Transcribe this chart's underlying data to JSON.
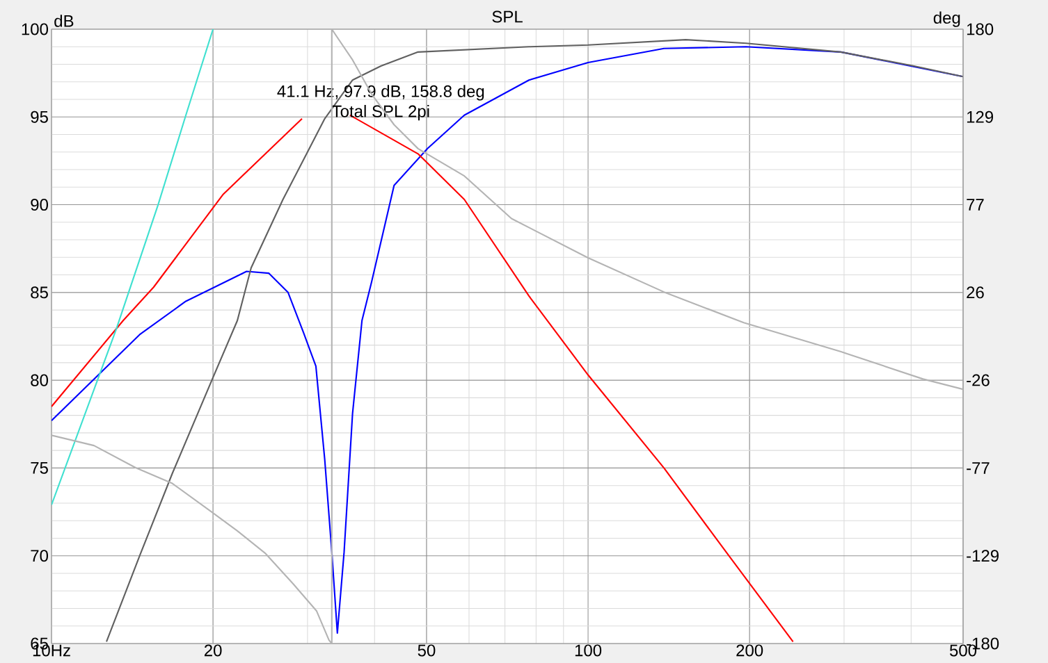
{
  "chart_data": {
    "type": "line",
    "title": "SPL",
    "ylabel": "dB",
    "y2label": "deg",
    "xlim": [
      10,
      500
    ],
    "ylim": [
      65,
      100
    ],
    "y2lim": [
      -180,
      180
    ],
    "log": "x",
    "xticks": [
      {
        "value": 10,
        "label": "10Hz"
      },
      20,
      50,
      100,
      200,
      500
    ],
    "yticks": [
      65,
      70,
      75,
      80,
      85,
      90,
      95,
      100
    ],
    "y2ticks": [
      -180,
      {
        "value": -128.57,
        "label": "-129"
      },
      {
        "value": -77.14,
        "label": "-77"
      },
      {
        "value": -25.71,
        "label": "-26"
      },
      {
        "value": 25.71,
        "label": "26"
      },
      {
        "value": 77.14,
        "label": "77"
      },
      {
        "value": 128.57,
        "label": "129"
      },
      180
    ],
    "grid": true,
    "marker": "none",
    "line_style": "solid",
    "series": [
      {
        "color": "#b4b4b4",
        "axis": "y2",
        "x": [
          10,
          12,
          14.35,
          16.76,
          19.7,
          22.2,
          25,
          28.2,
          31.2,
          32.9,
          33.3,
          33.3,
          34.3,
          36.4,
          39.5,
          43.5,
          48.2,
          58.8,
          72,
          100,
          138.5,
          195,
          296,
          421,
          500
        ],
        "values": [
          -58,
          -64,
          -77,
          -86,
          -102,
          -114,
          -127,
          -145,
          -161,
          -178,
          -180,
          180,
          174,
          162,
          142,
          124,
          110,
          94,
          69,
          46,
          26,
          8,
          -9,
          -25,
          -31
        ]
      },
      {
        "color": "#0000ff",
        "x": [
          10,
          14.6,
          17.8,
          23.1,
          25.4,
          27.6,
          29.5,
          31.1,
          32.3,
          33.3,
          34.1,
          35.1,
          36.4,
          37.9,
          39.5,
          43.5,
          50.2,
          58.8,
          77.6,
          100,
          138.5,
          197,
          296,
          500
        ],
        "values": [
          77.7,
          82.6,
          84.5,
          86.2,
          86.1,
          85,
          82.7,
          80.8,
          75.5,
          70.2,
          65.6,
          70.2,
          78.1,
          83.4,
          85.6,
          91.1,
          93.2,
          95.1,
          97.1,
          98.1,
          98.9,
          99.0,
          98.7,
          97.3
        ]
      },
      {
        "color": "#ff0000",
        "x": [
          10,
          13.6,
          15.5,
          20.9,
          29.3,
          null,
          36,
          48.2,
          58.8,
          77.6,
          100,
          138.5,
          182,
          241
        ],
        "values": [
          78.5,
          83.4,
          85.3,
          90.6,
          94.9,
          null,
          95.1,
          92.9,
          90.3,
          84.8,
          80.3,
          75,
          70.1,
          65.1
        ]
      },
      {
        "color": "#40e0d0",
        "x": [
          10,
          13.2,
          15.8,
          17.8,
          20
        ],
        "values": [
          72.9,
          82.9,
          90,
          95.1,
          100
        ]
      },
      {
        "color": "#606060",
        "x": [
          12.66,
          14.6,
          16.8,
          19.9,
          22.2,
          23.55,
          27,
          30,
          32.3,
          36.4,
          41.1,
          48.2,
          77.6,
          100,
          152,
          197,
          296,
          405,
          500
        ],
        "values": [
          65.1,
          70,
          74.7,
          80,
          83.4,
          86.4,
          90.3,
          93,
          94.9,
          97.1,
          97.9,
          98.7,
          99.0,
          99.1,
          99.4,
          99.2,
          98.7,
          97.9,
          97.3
        ]
      }
    ],
    "annotations": [
      {
        "text": "41.1 Hz, 97.9 dB, 158.8 deg",
        "x": 41.1,
        "y": 97.9
      },
      "Total SPL 2pi"
    ]
  }
}
